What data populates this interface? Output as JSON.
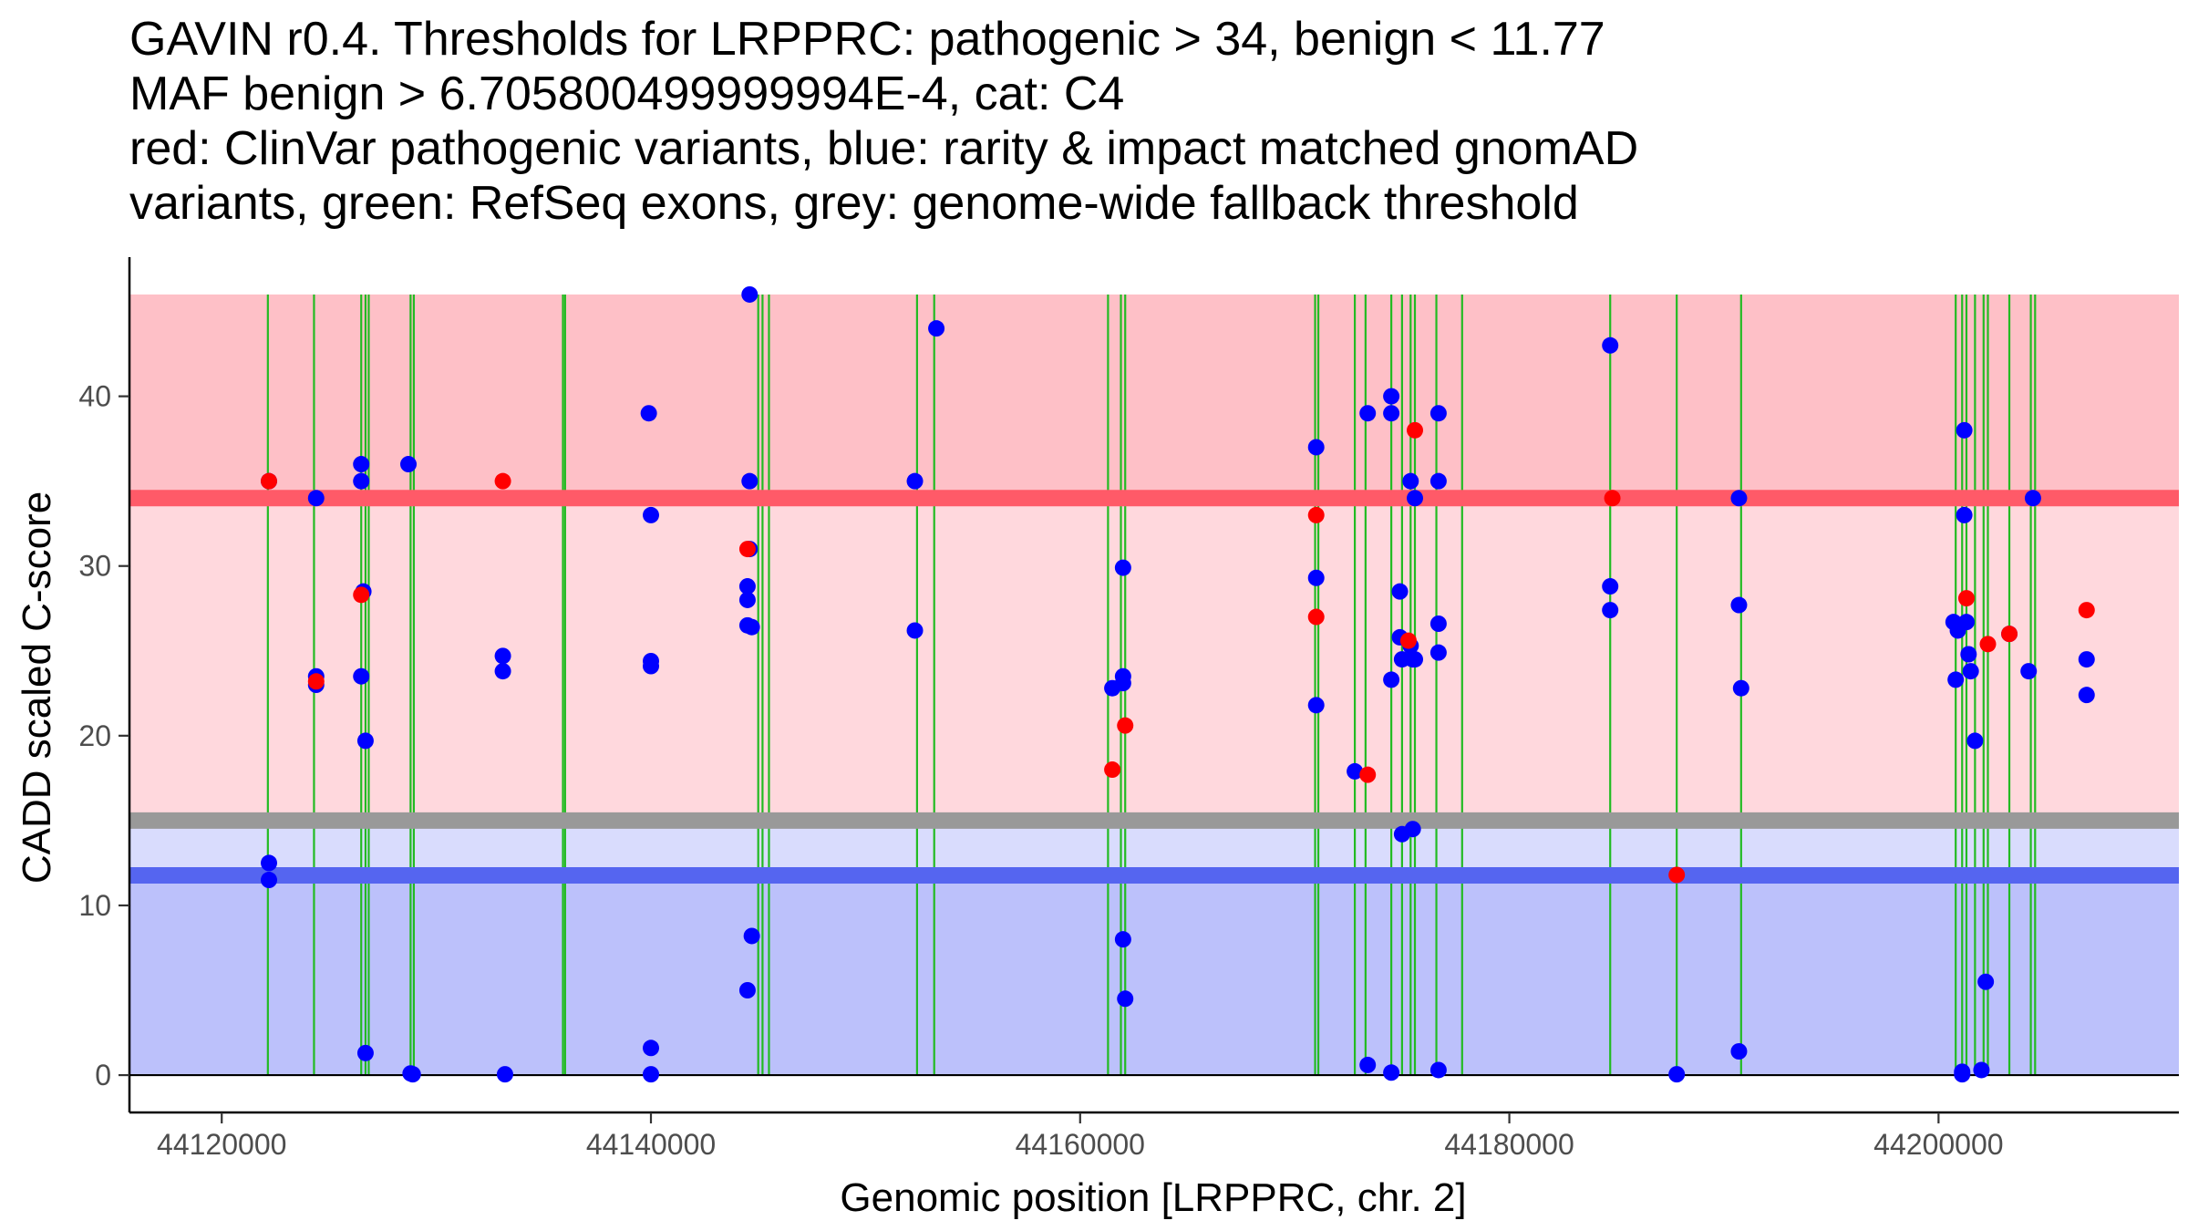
{
  "chart_data": {
    "type": "scatter",
    "title_lines": [
      "GAVIN r0.4. Thresholds for LRPPRC: pathogenic > 34, benign < 11.77",
      "MAF benign > 6.705800499999994E-4, cat: C4",
      "red: ClinVar pathogenic variants, blue: rarity & impact matched gnomAD",
      "variants, green: RefSeq exons, grey: genome-wide fallback threshold"
    ],
    "xlabel": "Genomic position [LRPPRC, chr. 2]",
    "ylabel": "CADD scaled C-score",
    "xlim": [
      44115700,
      44211200
    ],
    "ylim": [
      -2.2,
      48.2
    ],
    "x_ticks": [
      44120000,
      44140000,
      44160000,
      44180000,
      44200000
    ],
    "x_tick_labels": [
      "44120000",
      "44140000",
      "44160000",
      "44180000",
      "44200000"
    ],
    "y_ticks": [
      0,
      10,
      20,
      30,
      40
    ],
    "y_tick_labels": [
      "0",
      "10",
      "20",
      "30",
      "40"
    ],
    "pathogenic_threshold": 34,
    "benign_threshold": 11.77,
    "fallback_threshold": 15,
    "band_top": 46,
    "colors": {
      "pathogenic_band": "#fec0c7",
      "mid_pathogenic_band": "#ffd8dd",
      "mid_benign_band": "#d9dcfd",
      "benign_band": "#bcc1fb",
      "pathogenic_line": "#ff5a68",
      "benign_line": "#5565f0",
      "fallback_line": "#999999",
      "exon": "#22bb22",
      "clinvar": "#ff0000",
      "gnomad": "#0000ff",
      "axis": "#000000"
    },
    "exons": [
      44122150,
      44124300,
      44126500,
      44126700,
      44126850,
      44128800,
      44128950,
      44135900,
      44136000,
      44145000,
      44145200,
      44145500,
      44152400,
      44153200,
      44161300,
      44161900,
      44162100,
      44170950,
      44171100,
      44172800,
      44173300,
      44174500,
      44175000,
      44175400,
      44175600,
      44176600,
      44177800,
      44184700,
      44187800,
      44190800,
      44200800,
      44201100,
      44201300,
      44201700,
      44202100,
      44202300,
      44203300,
      44204300,
      44204500
    ],
    "series": [
      {
        "name": "ClinVar pathogenic variants",
        "color": "clinvar",
        "x": [
          44122200,
          44124400,
          44126500,
          44133100,
          44144500,
          44161500,
          44162100,
          44171000,
          44171000,
          44173400,
          44175300,
          44175600,
          44184800,
          44187800,
          44201300,
          44202300,
          44203300,
          44206900
        ],
        "y": [
          35,
          23.2,
          28.3,
          35,
          31,
          18,
          20.6,
          33,
          27,
          17.7,
          25.6,
          38,
          34,
          11.8,
          28.1,
          25.4,
          26,
          27.4
        ]
      },
      {
        "name": "gnomAD matched variants",
        "color": "gnomad",
        "x": [
          44122200,
          44122200,
          44122200,
          44124400,
          44124400,
          44124400,
          44126500,
          44126500,
          44126500,
          44126600,
          44126700,
          44126700,
          44128700,
          44128800,
          44128900,
          44133100,
          44133100,
          44133200,
          44139900,
          44140000,
          44140000,
          44140000,
          44140000,
          44140000,
          44144500,
          44144500,
          44144500,
          44144500,
          44144600,
          44144600,
          44144600,
          44144700,
          44144700,
          44152300,
          44152300,
          44153300,
          44161500,
          44162000,
          44162000,
          44162000,
          44162000,
          44162100,
          44171000,
          44171000,
          44171000,
          44172800,
          44173400,
          44173400,
          44174500,
          44174500,
          44174500,
          44174500,
          44174900,
          44174900,
          44175000,
          44175000,
          44175400,
          44175400,
          44175500,
          44175500,
          44175600,
          44175600,
          44176700,
          44176700,
          44176700,
          44176700,
          44176700,
          44184700,
          44184700,
          44184700,
          44187800,
          44190700,
          44190700,
          44190800,
          44190700,
          44200700,
          44200800,
          44200900,
          44201100,
          44201100,
          44201200,
          44201200,
          44201300,
          44201400,
          44201500,
          44201700,
          44202000,
          44202200,
          44203300,
          44204200,
          44204400,
          44206900,
          44206900
        ],
        "y": [
          35,
          12.5,
          11.5,
          34,
          23.5,
          23,
          36,
          35,
          23.5,
          28.5,
          19.7,
          1.3,
          36,
          0.1,
          0.05,
          24.7,
          23.8,
          0.05,
          39,
          33,
          24.4,
          24.1,
          1.6,
          0.05,
          28.8,
          28,
          26.5,
          5,
          46,
          35,
          31,
          26.4,
          8.2,
          35,
          26.2,
          44,
          22.8,
          29.9,
          23.5,
          23.1,
          8,
          4.5,
          37,
          29.3,
          21.8,
          17.9,
          39,
          0.6,
          40,
          39,
          23.3,
          0.15,
          28.5,
          25.8,
          24.5,
          14.2,
          35,
          25.3,
          24.5,
          14.5,
          34,
          24.5,
          39,
          35,
          26.6,
          24.9,
          0.3,
          43,
          28.8,
          27.4,
          0.05,
          34,
          27.7,
          22.8,
          1.4,
          26.7,
          23.3,
          26.2,
          0.2,
          0.05,
          38,
          33,
          26.7,
          24.8,
          23.8,
          19.7,
          0.3,
          5.5,
          26,
          23.8,
          34,
          24.5,
          22.4
        ]
      }
    ]
  }
}
